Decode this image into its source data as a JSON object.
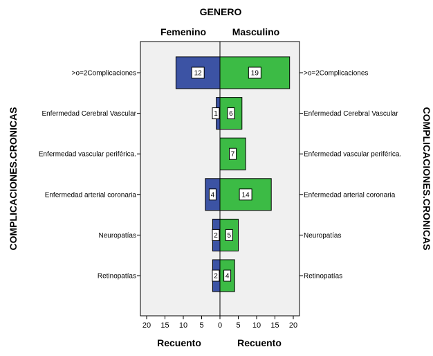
{
  "chart_data": {
    "type": "bar",
    "orientation": "horizontal",
    "layout": "population-pyramid",
    "title": "GENERO",
    "ylabel": "COMPLICACIONES.CRONICAS",
    "categories": [
      ">o=2Complicaciones",
      "Enfermedad Cerebral Vascular",
      "Enfermedad vascular periférica.",
      "Enfermedad arterial coronaria",
      "Neuropatías",
      "Retinopatías"
    ],
    "series": [
      {
        "name": "Femenino",
        "xlabel": "Recuento",
        "color": "#3c53a4",
        "values": [
          12,
          1,
          0,
          4,
          2,
          2
        ],
        "xlim": [
          0,
          20
        ],
        "ticks": [
          20,
          15,
          10,
          5,
          0
        ],
        "direction": "left"
      },
      {
        "name": "Masculino",
        "xlabel": "Recuento",
        "color": "#3cbb45",
        "values": [
          19,
          6,
          7,
          14,
          5,
          4
        ],
        "xlim": [
          0,
          20
        ],
        "ticks": [
          0,
          5,
          10,
          15,
          20
        ],
        "direction": "right"
      }
    ],
    "plot_background": "#f0f0f0",
    "grid": false
  }
}
